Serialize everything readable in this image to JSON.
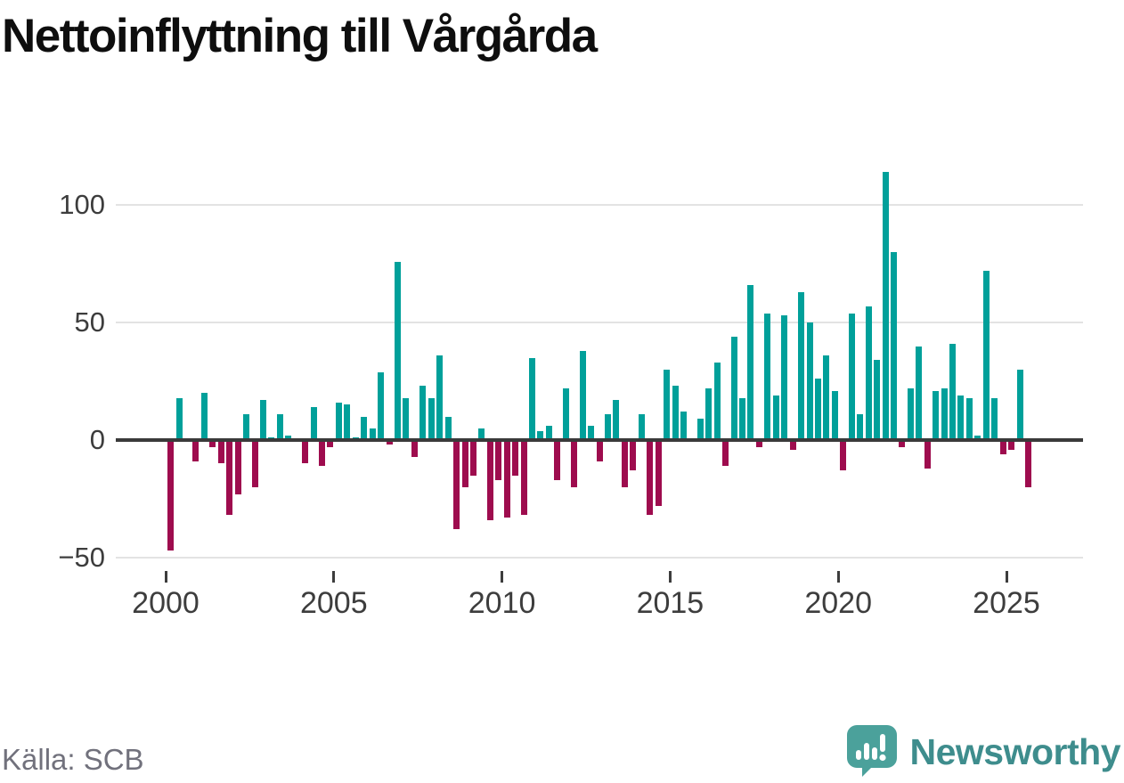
{
  "title": "Nettoinflyttning till Vårgårda",
  "source": {
    "text": "Källa: SCB"
  },
  "brand": {
    "name": "Newsworthy"
  },
  "colors": {
    "positive_bar": "#00a09a",
    "negative_bar": "#9e0c4e",
    "zero_line": "#3a3a3a",
    "gridline": "#e3e3e3",
    "axis_text": "#3d3d3d",
    "source_text": "#71717c",
    "brand_teal": "#3e8d8d",
    "logo_fill": "#4ba19b"
  },
  "chart_data": {
    "type": "bar",
    "title": "Nettoinflyttning till Vårgårda",
    "frequency": "quarterly",
    "start": "2000 Q1",
    "end": "2025 Q3",
    "x_tick_labels": [
      "2000",
      "2005",
      "2010",
      "2015",
      "2020",
      "2025"
    ],
    "y_ticks": [
      100,
      50,
      0,
      -50
    ],
    "y_tick_labels": [
      "100",
      "50",
      "0",
      "−50"
    ],
    "ylim": [
      -50,
      115
    ],
    "grid": "horizontal",
    "legend": "none",
    "values": [
      -47,
      18,
      0,
      -9,
      20,
      -3,
      -10,
      -32,
      -23,
      11,
      -20,
      17,
      1,
      11,
      2,
      0,
      -10,
      14,
      -11,
      -3,
      16,
      15,
      1,
      10,
      5,
      29,
      -2,
      76,
      18,
      -7,
      23,
      18,
      36,
      10,
      -38,
      -20,
      -15,
      5,
      -34,
      -17,
      -33,
      -15,
      -32,
      35,
      4,
      6,
      -17,
      22,
      -20,
      38,
      6,
      -9,
      11,
      17,
      -20,
      -13,
      11,
      -32,
      -28,
      30,
      23,
      12,
      0,
      9,
      22,
      33,
      -11,
      44,
      18,
      66,
      -3,
      54,
      19,
      53,
      -4,
      63,
      50,
      26,
      36,
      21,
      -13,
      54,
      11,
      57,
      34,
      114,
      80,
      -3,
      22,
      40,
      -12,
      21,
      22,
      41,
      19,
      18,
      2,
      72,
      18,
      -6,
      -4,
      30,
      -20
    ]
  }
}
